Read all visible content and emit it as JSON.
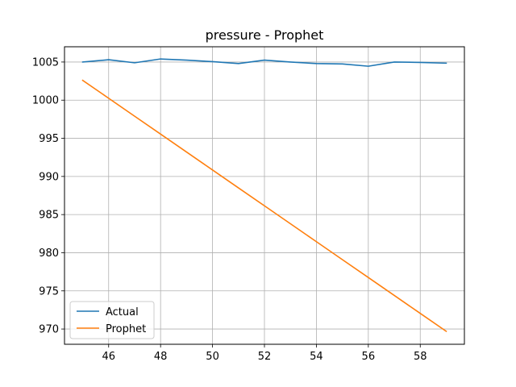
{
  "chart_data": {
    "type": "line",
    "title": "pressure - Prophet",
    "xlabel": "",
    "ylabel": "",
    "xlim": [
      44.3,
      59.7
    ],
    "ylim": [
      968.0,
      1007.0
    ],
    "x_ticks": [
      46,
      48,
      50,
      52,
      54,
      56,
      58
    ],
    "y_ticks": [
      970,
      975,
      980,
      985,
      990,
      995,
      1000,
      1005
    ],
    "grid": true,
    "legend_position": "lower-left",
    "x": [
      45,
      46,
      47,
      48,
      49,
      50,
      51,
      52,
      53,
      54,
      55,
      56,
      57,
      58,
      59
    ],
    "series": [
      {
        "name": "Actual",
        "color": "#1f77b4",
        "values": [
          1005.0,
          1005.3,
          1004.9,
          1005.4,
          1005.25,
          1005.05,
          1004.8,
          1005.25,
          1005.0,
          1004.8,
          1004.75,
          1004.45,
          1005.0,
          1004.95,
          1004.85
        ]
      },
      {
        "name": "Prophet",
        "color": "#ff7f0e",
        "values": [
          1002.6,
          1000.25,
          997.9,
          995.55,
          993.2,
          990.85,
          988.5,
          986.15,
          983.8,
          981.45,
          979.1,
          976.75,
          974.4,
          972.05,
          969.7
        ]
      }
    ]
  }
}
